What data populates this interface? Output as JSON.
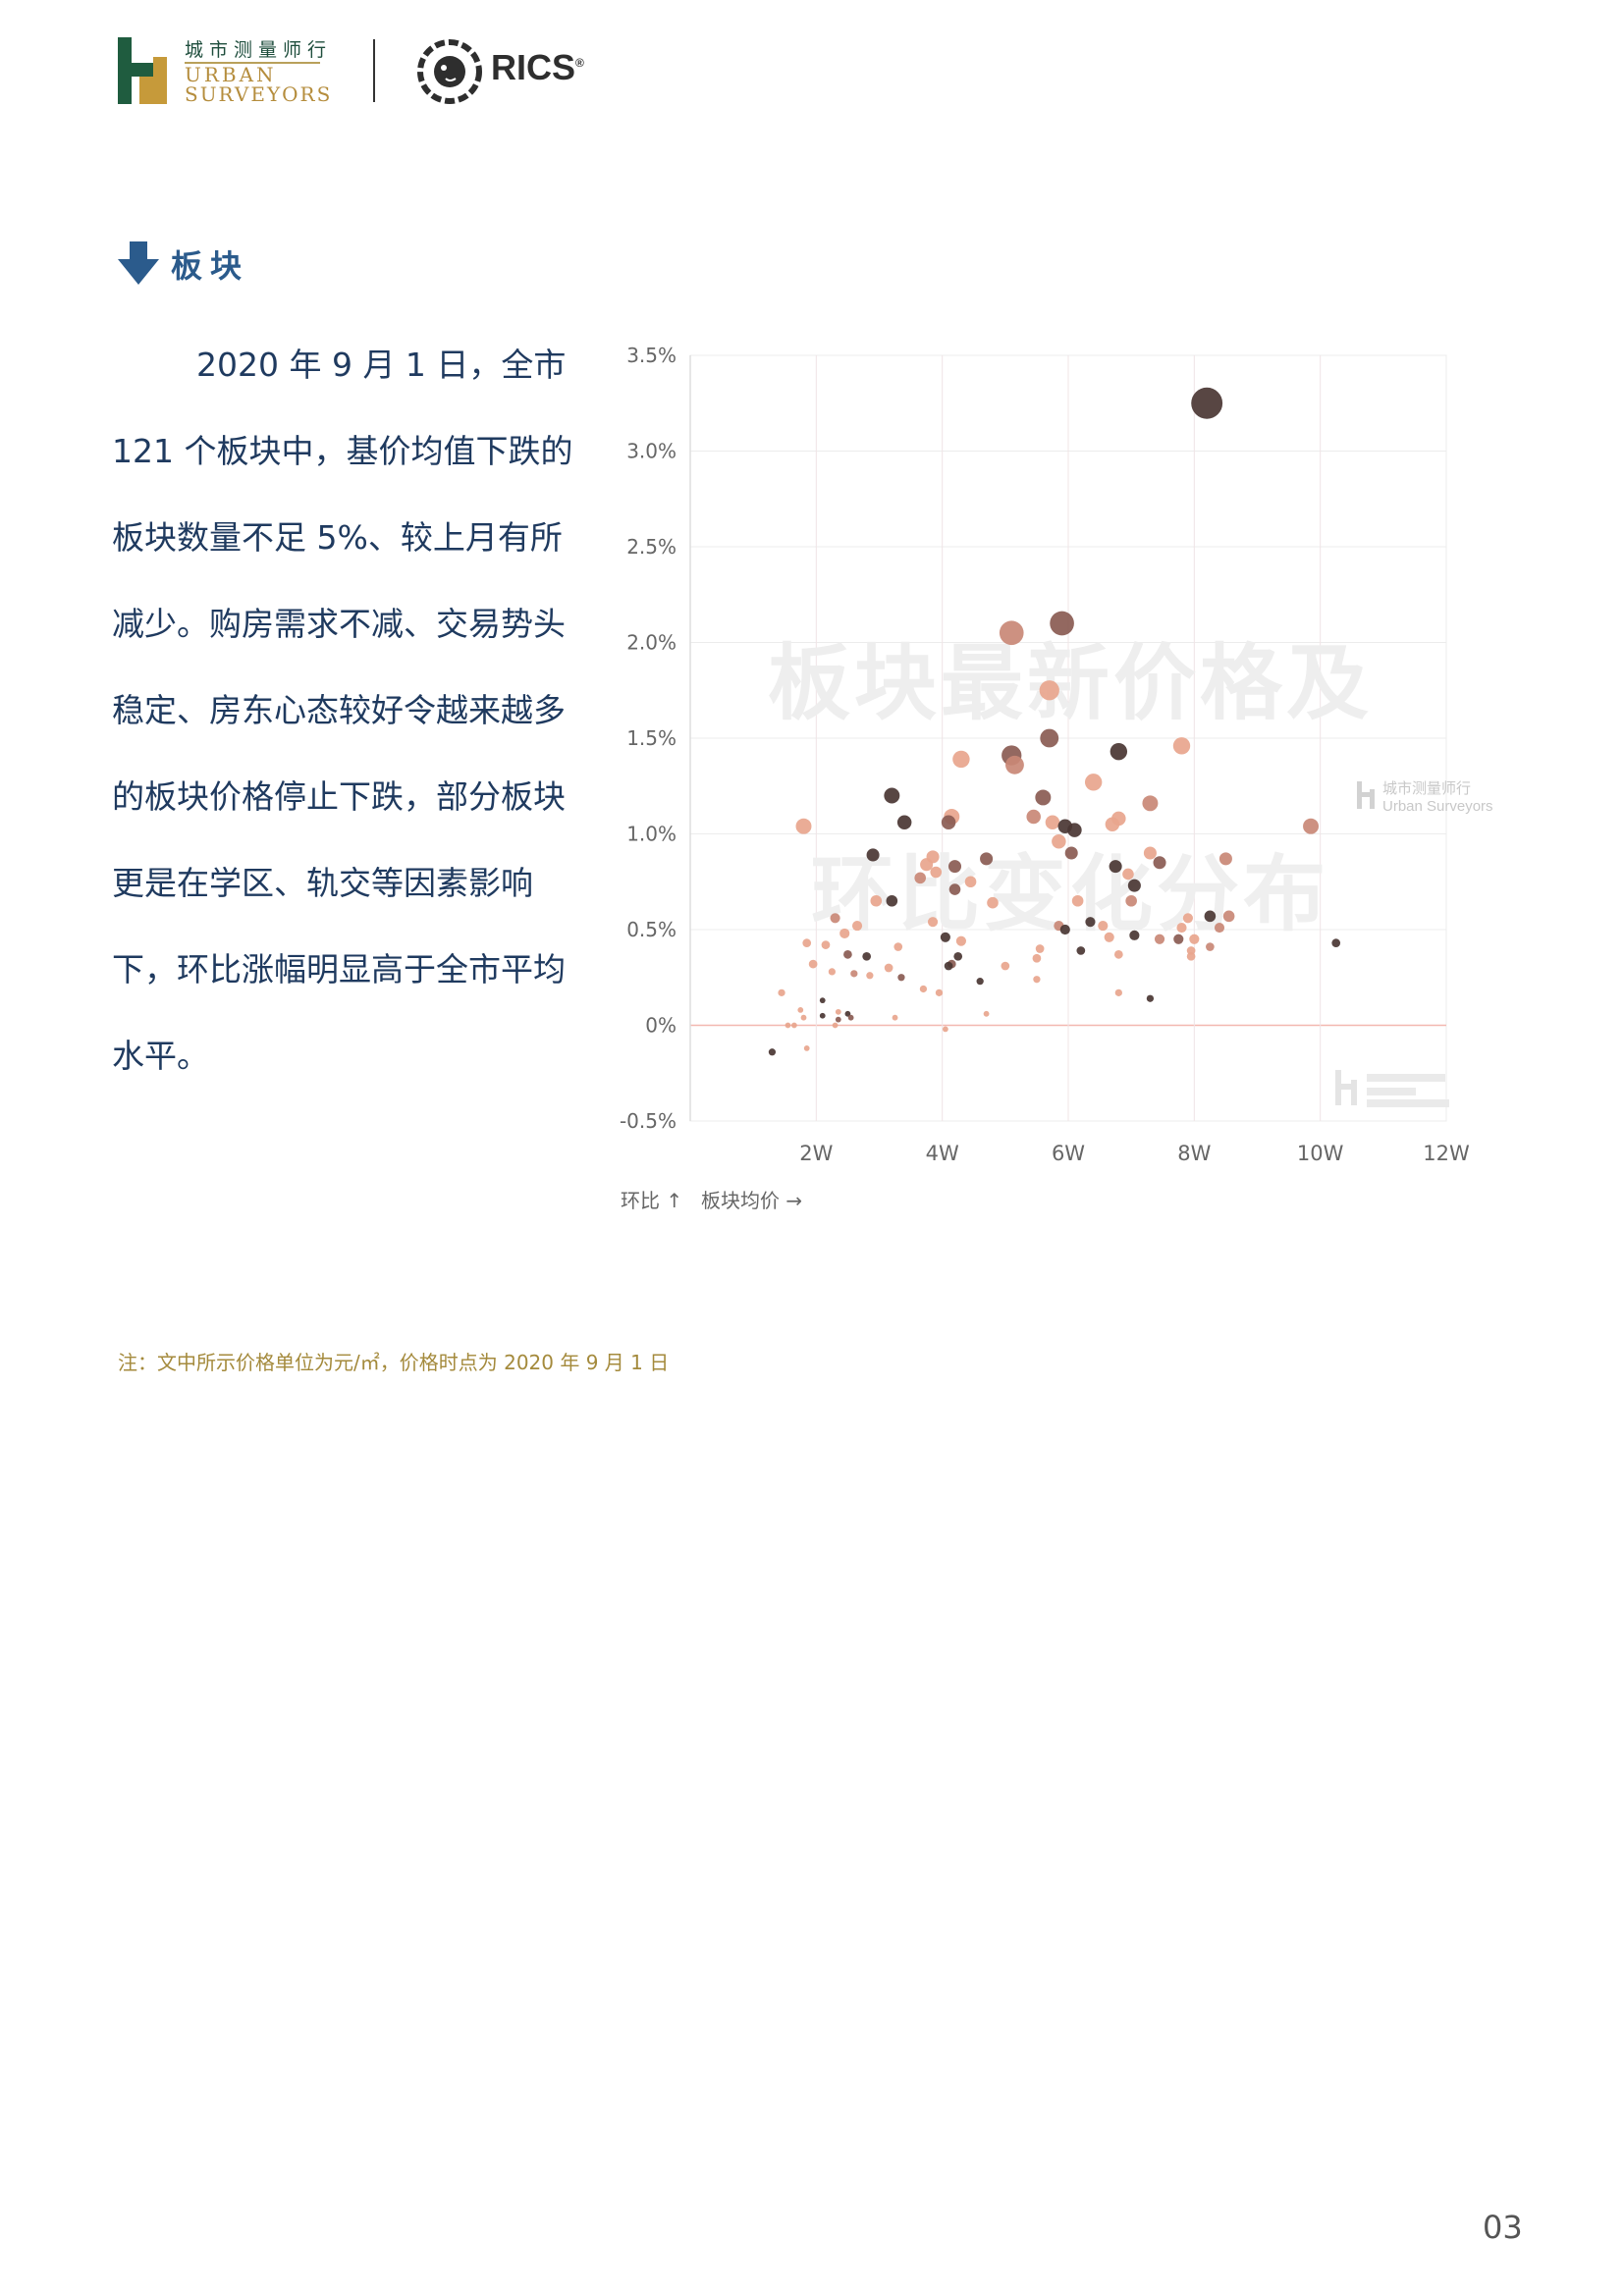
{
  "header": {
    "logo_cn": "城市测量师行",
    "logo_en_line1": "URBAN",
    "logo_en_line2": "SURVEYORS",
    "rics": "RICS",
    "rics_mark": "®"
  },
  "section": {
    "title": "板块"
  },
  "paragraph": {
    "lines": [
      "2020 年 9 月 1 日，全市",
      "121 个板块中，基价均值下跌的",
      "板块数量不足 5%、较上月有所",
      "减少。购房需求不减、交易势头",
      "稳定、房东心态较好令越来越多",
      "的板块价格停止下跌，部分板块",
      "更是在学区、轨交等因素影响",
      "下，环比涨幅明显高于全市平均",
      "水平。"
    ]
  },
  "chart_data": {
    "type": "scatter",
    "title": "",
    "watermark_title": [
      "板块最新价格及",
      "环比变化分布"
    ],
    "watermark_brand_cn": "城市测量师行",
    "watermark_brand_en": "Urban Surveyors",
    "xlabel": "板块均价 →",
    "ylabel": "环比 ↑",
    "xlim": [
      0,
      12
    ],
    "ylim": [
      -0.5,
      3.5
    ],
    "x_ticks": [
      2,
      4,
      6,
      8,
      10,
      12
    ],
    "x_tick_labels": [
      "2W",
      "4W",
      "6W",
      "8W",
      "10W",
      "12W"
    ],
    "y_ticks": [
      -0.5,
      0,
      0.5,
      1.0,
      1.5,
      2.0,
      2.5,
      3.0,
      3.5
    ],
    "y_tick_labels": [
      "-0.5%",
      "0%",
      "0.5%",
      "1.0%",
      "1.5%",
      "2.0%",
      "2.5%",
      "3.0%",
      "3.5%"
    ],
    "grid": true,
    "zero_line_color": "#f3b8b0",
    "palette": {
      "light": "#e8a58d",
      "mid": "#c98876",
      "brown": "#8a5b52",
      "dark": "#4a3633"
    },
    "points": [
      {
        "x": 8.2,
        "y": 3.25,
        "r": 11,
        "c": "dark"
      },
      {
        "x": 5.9,
        "y": 2.1,
        "r": 8.5,
        "c": "brown"
      },
      {
        "x": 5.1,
        "y": 2.05,
        "r": 8.5,
        "c": "mid"
      },
      {
        "x": 5.7,
        "y": 1.75,
        "r": 7,
        "c": "light"
      },
      {
        "x": 5.7,
        "y": 1.5,
        "r": 6.5,
        "c": "brown"
      },
      {
        "x": 6.8,
        "y": 1.43,
        "r": 6,
        "c": "dark"
      },
      {
        "x": 7.8,
        "y": 1.46,
        "r": 6,
        "c": "light"
      },
      {
        "x": 4.3,
        "y": 1.39,
        "r": 6,
        "c": "light"
      },
      {
        "x": 5.1,
        "y": 1.41,
        "r": 7,
        "c": "brown"
      },
      {
        "x": 5.15,
        "y": 1.36,
        "r": 6.5,
        "c": "mid"
      },
      {
        "x": 6.4,
        "y": 1.27,
        "r": 6,
        "c": "light"
      },
      {
        "x": 3.2,
        "y": 1.2,
        "r": 5.5,
        "c": "dark"
      },
      {
        "x": 5.6,
        "y": 1.19,
        "r": 5.5,
        "c": "brown"
      },
      {
        "x": 7.3,
        "y": 1.16,
        "r": 5.5,
        "c": "mid"
      },
      {
        "x": 4.15,
        "y": 1.09,
        "r": 5.5,
        "c": "light"
      },
      {
        "x": 5.45,
        "y": 1.09,
        "r": 5,
        "c": "mid"
      },
      {
        "x": 3.4,
        "y": 1.06,
        "r": 5,
        "c": "dark"
      },
      {
        "x": 4.1,
        "y": 1.06,
        "r": 5,
        "c": "brown"
      },
      {
        "x": 5.75,
        "y": 1.06,
        "r": 5,
        "c": "light"
      },
      {
        "x": 5.95,
        "y": 1.04,
        "r": 5,
        "c": "dark"
      },
      {
        "x": 6.1,
        "y": 1.02,
        "r": 5,
        "c": "dark"
      },
      {
        "x": 6.8,
        "y": 1.08,
        "r": 5,
        "c": "light"
      },
      {
        "x": 6.7,
        "y": 1.05,
        "r": 5,
        "c": "light"
      },
      {
        "x": 1.8,
        "y": 1.04,
        "r": 5.5,
        "c": "light"
      },
      {
        "x": 9.85,
        "y": 1.04,
        "r": 5.5,
        "c": "mid"
      },
      {
        "x": 5.85,
        "y": 0.96,
        "r": 5,
        "c": "light"
      },
      {
        "x": 2.9,
        "y": 0.89,
        "r": 4.5,
        "c": "dark"
      },
      {
        "x": 6.05,
        "y": 0.9,
        "r": 4.5,
        "c": "brown"
      },
      {
        "x": 3.85,
        "y": 0.88,
        "r": 4.5,
        "c": "light"
      },
      {
        "x": 4.7,
        "y": 0.87,
        "r": 4.5,
        "c": "brown"
      },
      {
        "x": 7.3,
        "y": 0.9,
        "r": 4.5,
        "c": "light"
      },
      {
        "x": 8.5,
        "y": 0.87,
        "r": 4.5,
        "c": "mid"
      },
      {
        "x": 7.45,
        "y": 0.85,
        "r": 4.5,
        "c": "brown"
      },
      {
        "x": 3.75,
        "y": 0.84,
        "r": 4.5,
        "c": "light"
      },
      {
        "x": 4.2,
        "y": 0.83,
        "r": 4.5,
        "c": "brown"
      },
      {
        "x": 6.75,
        "y": 0.83,
        "r": 4.5,
        "c": "dark"
      },
      {
        "x": 3.9,
        "y": 0.8,
        "r": 4,
        "c": "light"
      },
      {
        "x": 3.65,
        "y": 0.77,
        "r": 4,
        "c": "mid"
      },
      {
        "x": 6.95,
        "y": 0.79,
        "r": 4,
        "c": "light"
      },
      {
        "x": 4.45,
        "y": 0.75,
        "r": 4,
        "c": "light"
      },
      {
        "x": 7.05,
        "y": 0.73,
        "r": 4.5,
        "c": "dark"
      },
      {
        "x": 4.2,
        "y": 0.71,
        "r": 4,
        "c": "brown"
      },
      {
        "x": 3.2,
        "y": 0.65,
        "r": 4,
        "c": "dark"
      },
      {
        "x": 2.95,
        "y": 0.65,
        "r": 4,
        "c": "light"
      },
      {
        "x": 4.8,
        "y": 0.64,
        "r": 4,
        "c": "light"
      },
      {
        "x": 6.15,
        "y": 0.65,
        "r": 4,
        "c": "light"
      },
      {
        "x": 7,
        "y": 0.65,
        "r": 4,
        "c": "mid"
      },
      {
        "x": 2.3,
        "y": 0.56,
        "r": 3.5,
        "c": "mid"
      },
      {
        "x": 7.9,
        "y": 0.56,
        "r": 3.5,
        "c": "light"
      },
      {
        "x": 8.25,
        "y": 0.57,
        "r": 4,
        "c": "dark"
      },
      {
        "x": 8.55,
        "y": 0.57,
        "r": 4,
        "c": "mid"
      },
      {
        "x": 3.85,
        "y": 0.54,
        "r": 3.5,
        "c": "light"
      },
      {
        "x": 2.65,
        "y": 0.52,
        "r": 3.5,
        "c": "light"
      },
      {
        "x": 6.35,
        "y": 0.54,
        "r": 3.5,
        "c": "dark"
      },
      {
        "x": 6.55,
        "y": 0.52,
        "r": 3.5,
        "c": "light"
      },
      {
        "x": 5.85,
        "y": 0.52,
        "r": 3.5,
        "c": "mid"
      },
      {
        "x": 5.95,
        "y": 0.5,
        "r": 3.5,
        "c": "dark"
      },
      {
        "x": 7.8,
        "y": 0.51,
        "r": 3.5,
        "c": "light"
      },
      {
        "x": 8.4,
        "y": 0.51,
        "r": 3.5,
        "c": "mid"
      },
      {
        "x": 2.45,
        "y": 0.48,
        "r": 3.5,
        "c": "light"
      },
      {
        "x": 4.05,
        "y": 0.46,
        "r": 3.5,
        "c": "dark"
      },
      {
        "x": 4.3,
        "y": 0.44,
        "r": 3.5,
        "c": "light"
      },
      {
        "x": 7.05,
        "y": 0.47,
        "r": 3.5,
        "c": "dark"
      },
      {
        "x": 6.65,
        "y": 0.46,
        "r": 3.5,
        "c": "light"
      },
      {
        "x": 7.45,
        "y": 0.45,
        "r": 3.5,
        "c": "mid"
      },
      {
        "x": 7.75,
        "y": 0.45,
        "r": 3.5,
        "c": "brown"
      },
      {
        "x": 8,
        "y": 0.45,
        "r": 3.5,
        "c": "light"
      },
      {
        "x": 10.25,
        "y": 0.43,
        "r": 3,
        "c": "dark"
      },
      {
        "x": 1.85,
        "y": 0.43,
        "r": 3,
        "c": "light"
      },
      {
        "x": 2.15,
        "y": 0.42,
        "r": 3,
        "c": "light"
      },
      {
        "x": 3.3,
        "y": 0.41,
        "r": 3,
        "c": "light"
      },
      {
        "x": 5.55,
        "y": 0.4,
        "r": 3,
        "c": "light"
      },
      {
        "x": 6.2,
        "y": 0.39,
        "r": 3,
        "c": "dark"
      },
      {
        "x": 7.95,
        "y": 0.39,
        "r": 3,
        "c": "light"
      },
      {
        "x": 8.25,
        "y": 0.41,
        "r": 3,
        "c": "mid"
      },
      {
        "x": 2.5,
        "y": 0.37,
        "r": 3,
        "c": "brown"
      },
      {
        "x": 2.8,
        "y": 0.36,
        "r": 3,
        "c": "dark"
      },
      {
        "x": 4.25,
        "y": 0.36,
        "r": 3,
        "c": "dark"
      },
      {
        "x": 5.5,
        "y": 0.35,
        "r": 3,
        "c": "light"
      },
      {
        "x": 6.8,
        "y": 0.37,
        "r": 3,
        "c": "light"
      },
      {
        "x": 7.95,
        "y": 0.36,
        "r": 3,
        "c": "light"
      },
      {
        "x": 1.95,
        "y": 0.32,
        "r": 3,
        "c": "light"
      },
      {
        "x": 4.15,
        "y": 0.32,
        "r": 3,
        "c": "brown"
      },
      {
        "x": 5.0,
        "y": 0.31,
        "r": 3,
        "c": "light"
      },
      {
        "x": 3.15,
        "y": 0.3,
        "r": 3,
        "c": "light"
      },
      {
        "x": 4.1,
        "y": 0.31,
        "r": 3,
        "c": "dark"
      },
      {
        "x": 2.25,
        "y": 0.28,
        "r": 2.5,
        "c": "light"
      },
      {
        "x": 2.6,
        "y": 0.27,
        "r": 2.5,
        "c": "mid"
      },
      {
        "x": 2.85,
        "y": 0.26,
        "r": 2.5,
        "c": "light"
      },
      {
        "x": 3.35,
        "y": 0.25,
        "r": 2.5,
        "c": "brown"
      },
      {
        "x": 4.6,
        "y": 0.23,
        "r": 2.5,
        "c": "dark"
      },
      {
        "x": 5.5,
        "y": 0.24,
        "r": 2.5,
        "c": "light"
      },
      {
        "x": 1.45,
        "y": 0.17,
        "r": 2.5,
        "c": "light"
      },
      {
        "x": 3.7,
        "y": 0.19,
        "r": 2.5,
        "c": "light"
      },
      {
        "x": 3.95,
        "y": 0.17,
        "r": 2.5,
        "c": "light"
      },
      {
        "x": 6.8,
        "y": 0.17,
        "r": 2.5,
        "c": "light"
      },
      {
        "x": 7.3,
        "y": 0.14,
        "r": 2.5,
        "c": "dark"
      },
      {
        "x": 2.1,
        "y": 0.13,
        "r": 2,
        "c": "dark"
      },
      {
        "x": 1.75,
        "y": 0.08,
        "r": 2,
        "c": "light"
      },
      {
        "x": 2.35,
        "y": 0.07,
        "r": 2,
        "c": "light"
      },
      {
        "x": 2.5,
        "y": 0.06,
        "r": 2,
        "c": "dark"
      },
      {
        "x": 2.1,
        "y": 0.05,
        "r": 2,
        "c": "dark"
      },
      {
        "x": 2.55,
        "y": 0.04,
        "r": 2,
        "c": "brown"
      },
      {
        "x": 1.8,
        "y": 0.04,
        "r": 2,
        "c": "light"
      },
      {
        "x": 2.35,
        "y": 0.03,
        "r": 2,
        "c": "brown"
      },
      {
        "x": 3.25,
        "y": 0.04,
        "r": 2,
        "c": "light"
      },
      {
        "x": 4.7,
        "y": 0.06,
        "r": 2,
        "c": "light"
      },
      {
        "x": 1.55,
        "y": 0.0,
        "r": 2,
        "c": "light"
      },
      {
        "x": 1.65,
        "y": 0.0,
        "r": 2,
        "c": "light"
      },
      {
        "x": 2.3,
        "y": 0.0,
        "r": 2,
        "c": "light"
      },
      {
        "x": 4.05,
        "y": -0.02,
        "r": 2,
        "c": "light"
      },
      {
        "x": 1.3,
        "y": -0.14,
        "r": 2.5,
        "c": "dark"
      },
      {
        "x": 1.85,
        "y": -0.12,
        "r": 2,
        "c": "light"
      }
    ]
  },
  "footnote": "注：文中所示价格单位为元/㎡，价格时点为 2020 年 9 月 1 日",
  "page_number": "03"
}
